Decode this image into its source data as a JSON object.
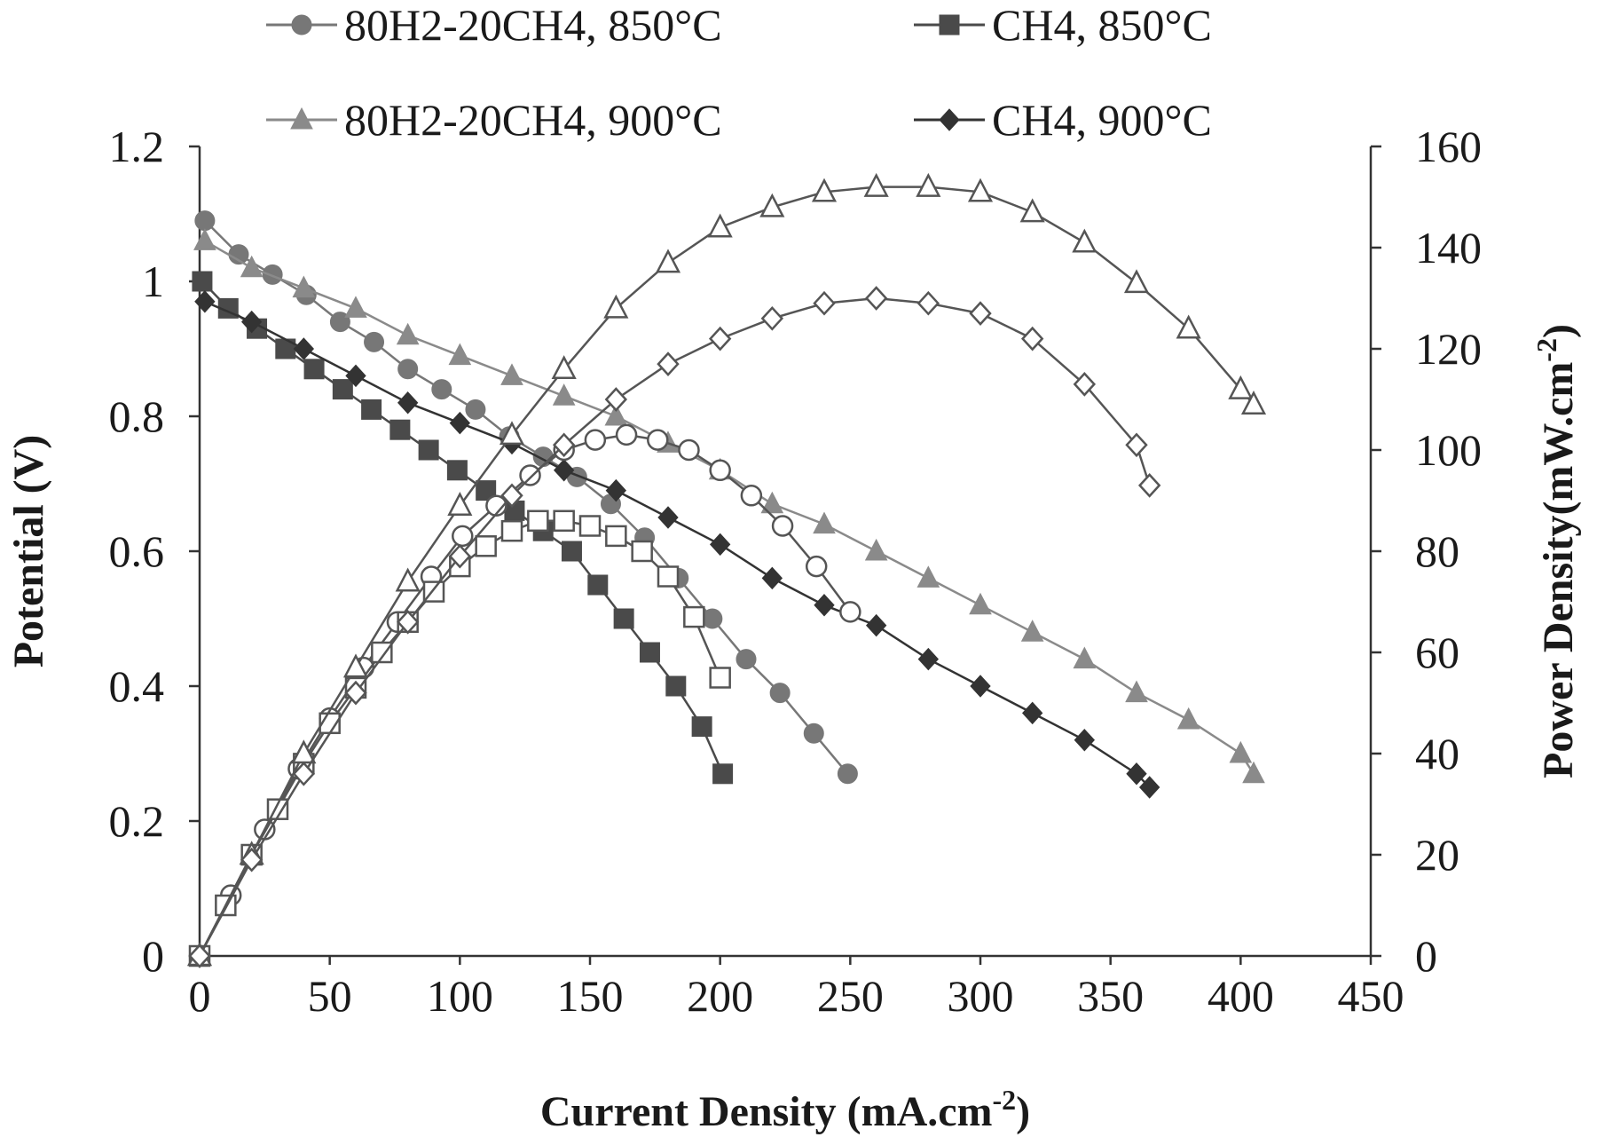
{
  "chart_data": {
    "type": "line",
    "xlabel": "Current Density (mA.cm",
    "xlabel_sup": "-2",
    "xlabel_close": ")",
    "ylabel": "Potential (V)",
    "y2label": "Power Density(mW.cm",
    "y2label_sup": "-2",
    "y2label_close": ")",
    "xlim": [
      0,
      450
    ],
    "ylim": [
      0,
      1.2
    ],
    "y2lim": [
      0,
      160
    ],
    "x_ticks": [
      "0",
      "50",
      "100",
      "150",
      "200",
      "250",
      "300",
      "350",
      "400",
      "450"
    ],
    "y_ticks": [
      "0",
      "0.2",
      "0.4",
      "0.6",
      "0.8",
      "1",
      "1.2"
    ],
    "y2_ticks": [
      "0",
      "20",
      "40",
      "60",
      "80",
      "100",
      "120",
      "140",
      "160"
    ],
    "legend": {
      "placement": "top",
      "ncols": 2
    },
    "colors": {
      "h2_850": "#777777",
      "ch4_850": "#4a4a4a",
      "h2_900": "#8a8a8a",
      "ch4_900": "#333333",
      "open_marker_edge": "#555555"
    },
    "series": [
      {
        "name": "80H2-20CH4, 850°C",
        "axis": "potential",
        "marker": "circle",
        "x": [
          2,
          15,
          28,
          41,
          54,
          67,
          80,
          93,
          106,
          119,
          132,
          145,
          158,
          171,
          184,
          197,
          210,
          223,
          236,
          249
        ],
        "y": [
          1.09,
          1.04,
          1.01,
          0.98,
          0.94,
          0.91,
          0.87,
          0.84,
          0.81,
          0.77,
          0.74,
          0.71,
          0.67,
          0.62,
          0.56,
          0.5,
          0.44,
          0.39,
          0.33,
          0.27
        ]
      },
      {
        "name": "CH4, 850°C",
        "axis": "potential",
        "marker": "square",
        "x": [
          1,
          11,
          22,
          33,
          44,
          55,
          66,
          77,
          88,
          99,
          110,
          121,
          132,
          143,
          153,
          163,
          173,
          183,
          193,
          201
        ],
        "y": [
          1.0,
          0.96,
          0.93,
          0.9,
          0.87,
          0.84,
          0.81,
          0.78,
          0.75,
          0.72,
          0.69,
          0.66,
          0.63,
          0.6,
          0.55,
          0.5,
          0.45,
          0.4,
          0.34,
          0.27
        ]
      },
      {
        "name": "80H2-20CH4, 900°C",
        "axis": "potential",
        "marker": "triangle",
        "x": [
          2,
          20,
          40,
          60,
          80,
          100,
          120,
          140,
          160,
          180,
          200,
          220,
          240,
          260,
          280,
          300,
          320,
          340,
          360,
          380,
          400,
          405
        ],
        "y": [
          1.06,
          1.02,
          0.99,
          0.96,
          0.92,
          0.89,
          0.86,
          0.83,
          0.8,
          0.76,
          0.72,
          0.67,
          0.64,
          0.6,
          0.56,
          0.52,
          0.48,
          0.44,
          0.39,
          0.35,
          0.3,
          0.27
        ]
      },
      {
        "name": "CH4, 900°C",
        "axis": "potential",
        "marker": "diamond",
        "x": [
          2,
          20,
          40,
          60,
          80,
          100,
          120,
          140,
          160,
          180,
          200,
          220,
          240,
          260,
          280,
          300,
          320,
          340,
          360,
          365
        ],
        "y": [
          0.97,
          0.94,
          0.9,
          0.86,
          0.82,
          0.79,
          0.76,
          0.72,
          0.69,
          0.65,
          0.61,
          0.56,
          0.52,
          0.49,
          0.44,
          0.4,
          0.36,
          0.32,
          0.27,
          0.25
        ]
      },
      {
        "name": "",
        "axis": "power",
        "marker": "circle-open",
        "x": [
          0,
          12,
          25,
          38,
          50,
          63,
          76,
          89,
          101,
          114,
          127,
          140,
          152,
          164,
          176,
          188,
          200,
          212,
          224,
          237,
          250
        ],
        "y": [
          0,
          12,
          25,
          37,
          47,
          57,
          66,
          75,
          83,
          89,
          95,
          100,
          102,
          103,
          102,
          100,
          96,
          91,
          85,
          77,
          68
        ]
      },
      {
        "name": "",
        "axis": "power",
        "marker": "square-open",
        "x": [
          0,
          10,
          20,
          30,
          40,
          50,
          60,
          70,
          80,
          90,
          100,
          110,
          120,
          130,
          140,
          150,
          160,
          170,
          180,
          190,
          200
        ],
        "y": [
          0,
          10,
          20,
          29,
          38,
          46,
          53,
          60,
          66,
          72,
          77,
          81,
          84,
          86,
          86,
          85,
          83,
          80,
          75,
          67,
          55
        ]
      },
      {
        "name": "",
        "axis": "power",
        "marker": "triangle-open",
        "x": [
          0,
          20,
          40,
          60,
          80,
          100,
          120,
          140,
          160,
          180,
          200,
          220,
          240,
          260,
          280,
          300,
          320,
          340,
          360,
          380,
          400,
          405
        ],
        "y": [
          0,
          20,
          40,
          57,
          74,
          89,
          103,
          116,
          128,
          137,
          144,
          148,
          151,
          152,
          152,
          151,
          147,
          141,
          133,
          124,
          112,
          109
        ]
      },
      {
        "name": "",
        "axis": "power",
        "marker": "diamond-open",
        "x": [
          0,
          20,
          40,
          60,
          80,
          100,
          120,
          140,
          160,
          180,
          200,
          220,
          240,
          260,
          280,
          300,
          320,
          340,
          360,
          365
        ],
        "y": [
          0,
          19,
          36,
          52,
          66,
          79,
          91,
          101,
          110,
          117,
          122,
          126,
          129,
          130,
          129,
          127,
          122,
          113,
          101,
          93
        ]
      }
    ]
  }
}
